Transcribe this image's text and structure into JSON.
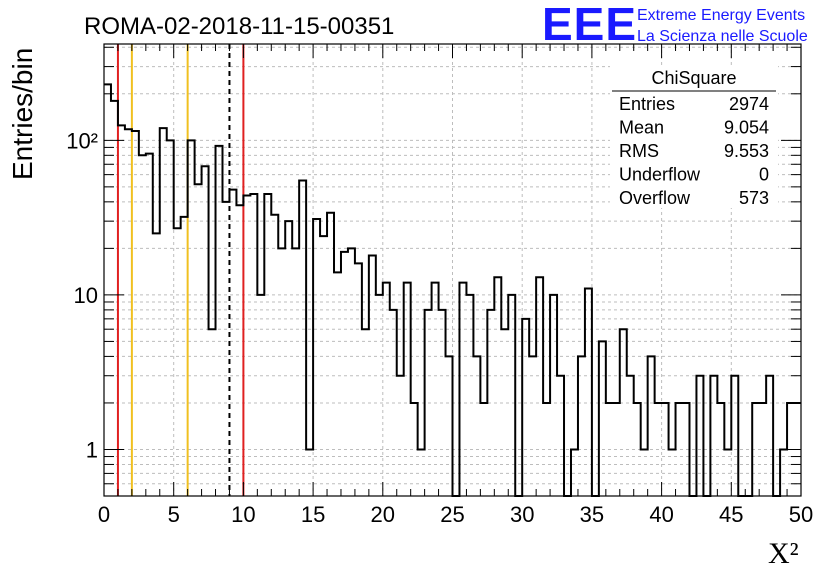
{
  "chart_data": {
    "type": "bar",
    "title": "ROMA-02-2018-11-15-00351",
    "xlabel": "X²",
    "ylabel": "Entries/bin",
    "xlim": [
      0,
      50
    ],
    "ylim": [
      0.5,
      420
    ],
    "yscale": "log",
    "grid": true,
    "histtype": "step",
    "bin_width": 0.5,
    "x_ticks": [
      0,
      5,
      10,
      15,
      20,
      25,
      30,
      35,
      40,
      45,
      50
    ],
    "y_ticks": [
      {
        "value": 1,
        "label": "1"
      },
      {
        "value": 10,
        "label": "10"
      },
      {
        "value": 100,
        "label": "10²"
      }
    ],
    "bin_counts": [
      230,
      180,
      125,
      118,
      115,
      80,
      82,
      25,
      120,
      100,
      27,
      32,
      100,
      52,
      68,
      6,
      92,
      40,
      48,
      38,
      44,
      45,
      10,
      45,
      33,
      20,
      30,
      20,
      55,
      1,
      31,
      24,
      34,
      14,
      19,
      20,
      16,
      6,
      18,
      10,
      12,
      8,
      3,
      12,
      2,
      1,
      8,
      12,
      8,
      4,
      0,
      12,
      10,
      4,
      2,
      8,
      13,
      6,
      10,
      0,
      7,
      4,
      13,
      2,
      10,
      3,
      0,
      1,
      4,
      11,
      0,
      5,
      2,
      2,
      6,
      3,
      2,
      1,
      4,
      2,
      2,
      1,
      2,
      2,
      0,
      3,
      0,
      3,
      2,
      1,
      3,
      0,
      0,
      2,
      2,
      3,
      0,
      1,
      2,
      2
    ],
    "vertical_lines": [
      {
        "x": 1,
        "color": "#e02020",
        "style": "solid"
      },
      {
        "x": 2,
        "color": "#f0c020",
        "style": "solid"
      },
      {
        "x": 6,
        "color": "#f0c020",
        "style": "solid"
      },
      {
        "x": 9,
        "color": "#000000",
        "style": "dashed"
      },
      {
        "x": 10,
        "color": "#e02020",
        "style": "solid"
      }
    ],
    "stats_box": {
      "title": "ChiSquare",
      "rows": [
        {
          "label": "Entries",
          "value": "2974"
        },
        {
          "label": "Mean",
          "value": "9.054"
        },
        {
          "label": "RMS",
          "value": "9.553"
        },
        {
          "label": "Underflow",
          "value": "0"
        },
        {
          "label": "Overflow",
          "value": "573"
        }
      ]
    }
  },
  "logo": {
    "mark": "EEE",
    "line1": "Extreme Energy Events",
    "line2": "La Scienza nelle Scuole",
    "color": "#1a1aff"
  }
}
